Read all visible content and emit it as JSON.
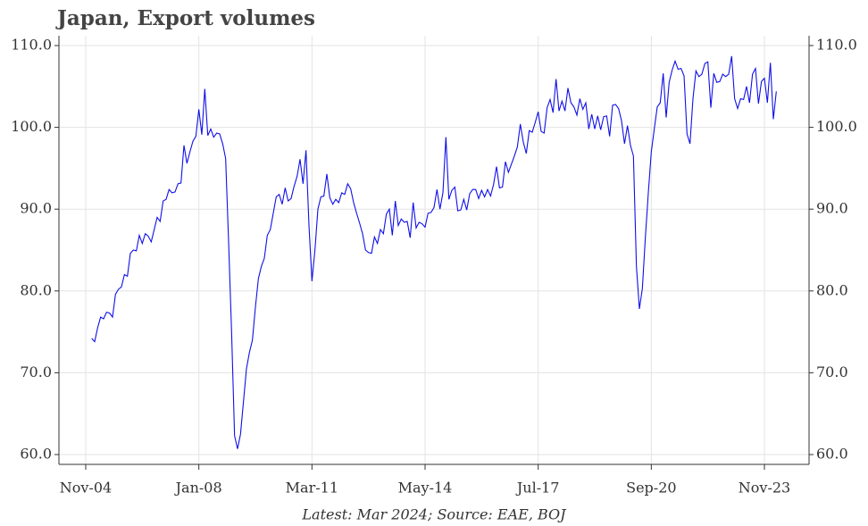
{
  "chart_data": {
    "type": "line",
    "title": "Japan, Export volumes",
    "footnote": "Latest: Mar 2024; Source: EAE, BOJ",
    "x_start": "2005-01",
    "series": [
      {
        "color": "#1010e8",
        "values": [
          74.2,
          73.8,
          75.5,
          76.8,
          76.6,
          77.4,
          77.3,
          76.8,
          79.6,
          80.2,
          80.5,
          82.0,
          81.8,
          84.6,
          85.0,
          84.9,
          86.8,
          85.8,
          87.0,
          86.7,
          86.0,
          87.5,
          89.0,
          88.5,
          91.0,
          91.2,
          92.4,
          92.0,
          92.1,
          93.1,
          93.2,
          97.8,
          95.6,
          97.0,
          98.3,
          98.9,
          102.2,
          99.1,
          104.7,
          99.0,
          99.8,
          98.8,
          99.3,
          99.2,
          98.0,
          96.2,
          86.0,
          75.0,
          62.3,
          60.7,
          62.5,
          66.5,
          70.5,
          72.5,
          74.0,
          78.0,
          81.5,
          83.0,
          84.0,
          86.8,
          87.5,
          89.5,
          91.5,
          91.8,
          90.6,
          92.6,
          91.0,
          91.3,
          92.8,
          94.0,
          96.1,
          93.1,
          97.2,
          88.0,
          81.2,
          85.0,
          90.0,
          91.5,
          91.6,
          94.3,
          91.4,
          90.6,
          91.2,
          90.8,
          92.0,
          91.8,
          93.1,
          92.5,
          90.8,
          89.5,
          88.3,
          87.0,
          85.0,
          84.7,
          84.6,
          86.6,
          85.8,
          87.5,
          87.0,
          89.4,
          90.0,
          86.8,
          91.0,
          88.0,
          88.8,
          88.4,
          88.5,
          86.5,
          90.8,
          87.7,
          88.4,
          88.2,
          87.8,
          89.5,
          89.6,
          90.2,
          92.4,
          90.0,
          92.0,
          98.8,
          91.2,
          92.3,
          92.7,
          89.8,
          89.9,
          91.2,
          89.9,
          91.9,
          92.4,
          92.4,
          91.3,
          92.3,
          91.5,
          92.4,
          91.6,
          93.0,
          95.2,
          92.6,
          92.7,
          95.8,
          94.5,
          95.5,
          96.5,
          97.6,
          100.4,
          98.2,
          96.8,
          99.6,
          99.4,
          100.6,
          101.9,
          99.5,
          99.3,
          102.4,
          103.4,
          101.8,
          105.9,
          102.0,
          103.2,
          102.0,
          104.8,
          103.0,
          102.5,
          101.5,
          103.5,
          102.2,
          103.0,
          99.8,
          101.6,
          99.8,
          101.4,
          99.7,
          101.3,
          101.4,
          98.9,
          102.7,
          102.8,
          102.3,
          100.8,
          98.0,
          100.2,
          97.8,
          96.5,
          83.0,
          77.8,
          80.3,
          86.5,
          92.0,
          97.0,
          99.8,
          102.5,
          103.0,
          106.6,
          101.2,
          105.5,
          107.0,
          108.1,
          107.1,
          107.2,
          106.3,
          99.2,
          98.0,
          103.5,
          106.9,
          106.2,
          106.5,
          107.8,
          108.0,
          102.4,
          106.6,
          105.5,
          105.6,
          106.5,
          106.2,
          106.5,
          108.7,
          103.5,
          102.3,
          103.5,
          103.4,
          105.0,
          103.0,
          106.5,
          107.2,
          102.9,
          105.6,
          106.0,
          103.0,
          107.9,
          101.0,
          104.4
        ]
      }
    ],
    "xlim": [
      "2004-02",
      "2025-02"
    ],
    "xticks": [
      {
        "value": "2004-11",
        "label": "Nov-04"
      },
      {
        "value": "2008-01",
        "label": "Jan-08"
      },
      {
        "value": "2011-03",
        "label": "Mar-11"
      },
      {
        "value": "2014-05",
        "label": "May-14"
      },
      {
        "value": "2017-07",
        "label": "Jul-17"
      },
      {
        "value": "2020-09",
        "label": "Sep-20"
      },
      {
        "value": "2023-11",
        "label": "Nov-23"
      }
    ],
    "ylim": [
      58.8,
      111.2
    ],
    "yticks": [
      {
        "value": 60,
        "label": "60.0"
      },
      {
        "value": 70,
        "label": "70.0"
      },
      {
        "value": 80,
        "label": "80.0"
      },
      {
        "value": 90,
        "label": "90.0"
      },
      {
        "value": 100,
        "label": "100.0"
      },
      {
        "value": 110,
        "label": "110.0"
      }
    ],
    "grid": true
  }
}
